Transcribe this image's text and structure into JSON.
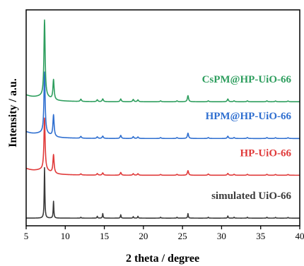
{
  "chart_data": {
    "type": "line",
    "xlabel": "2 theta / degree",
    "ylabel": "Intensity / a.u.",
    "xlim": [
      5,
      40
    ],
    "xticks": [
      5,
      10,
      15,
      20,
      25,
      30,
      35,
      40
    ],
    "y_ticks_shown": false,
    "grid": false,
    "legend": "inline labels above each curve (right side)",
    "peak_positions_2theta": [
      7.35,
      8.5,
      12.0,
      14.1,
      14.8,
      17.1,
      18.7,
      19.3,
      22.2,
      24.3,
      25.7,
      28.3,
      30.8,
      31.6,
      33.3,
      35.8,
      36.9,
      38.5
    ],
    "series": [
      {
        "name": "simulated UiO-66",
        "color": "#3a3a3a",
        "baseline": 0,
        "peak_heights": [
          3.3,
          1.1,
          0.06,
          0.12,
          0.3,
          0.22,
          0.1,
          0.12,
          0.06,
          0.06,
          0.3,
          0.06,
          0.14,
          0.06,
          0.06,
          0.06,
          0.05,
          0.05
        ]
      },
      {
        "name": "HP-UiO-66",
        "color": "#e03a3a",
        "baseline": 2.8,
        "peak_heights": [
          3.4,
          1.2,
          0.07,
          0.1,
          0.15,
          0.18,
          0.1,
          0.1,
          0.05,
          0.06,
          0.3,
          0.08,
          0.12,
          0.06,
          0.06,
          0.06,
          0.05,
          0.05
        ]
      },
      {
        "name": "HPM@HP-UiO-66",
        "color": "#2f6fd0",
        "baseline": 5.2,
        "peak_heights": [
          4.0,
          1.4,
          0.12,
          0.1,
          0.15,
          0.2,
          0.12,
          0.1,
          0.06,
          0.06,
          0.35,
          0.06,
          0.15,
          0.06,
          0.06,
          0.06,
          0.05,
          0.05
        ]
      },
      {
        "name": "CsPM@HP-UiO-66",
        "color": "#2e9e5e",
        "baseline": 7.6,
        "peak_heights": [
          5.0,
          1.3,
          0.15,
          0.12,
          0.18,
          0.18,
          0.15,
          0.12,
          0.06,
          0.06,
          0.4,
          0.06,
          0.18,
          0.06,
          0.06,
          0.06,
          0.05,
          0.05
        ]
      }
    ]
  }
}
